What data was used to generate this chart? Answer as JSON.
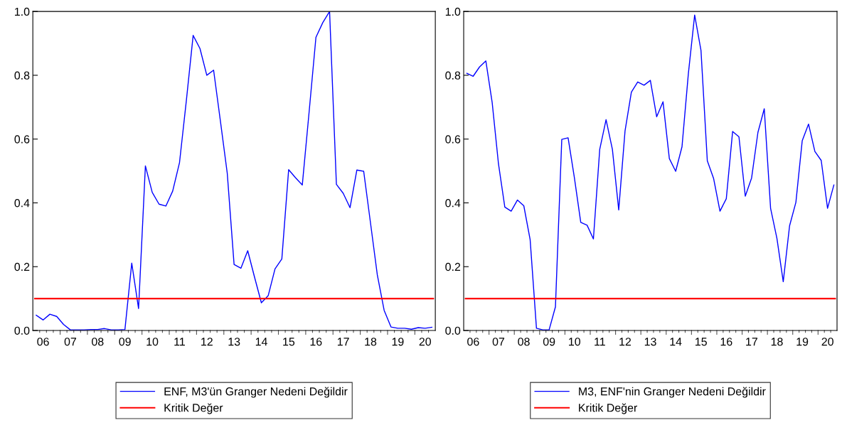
{
  "chart_data": [
    {
      "type": "line",
      "categories": [
        null,
        "06",
        null,
        null,
        null,
        "07",
        null,
        null,
        null,
        "08",
        null,
        null,
        null,
        "09",
        null,
        null,
        null,
        "10",
        null,
        null,
        null,
        "11",
        null,
        null,
        null,
        "12",
        null,
        null,
        null,
        "13",
        null,
        null,
        null,
        "14",
        null,
        null,
        null,
        "15",
        null,
        null,
        null,
        "16",
        null,
        null,
        null,
        "17",
        null,
        null,
        null,
        "18",
        null,
        null,
        null,
        "19",
        null,
        null,
        null,
        "20",
        null
      ],
      "series": [
        {
          "name": "ENF, M3'ün Granger Nedeni Değildir",
          "color": "#0000ff",
          "values": [
            0.048,
            0.033,
            0.051,
            0.044,
            0.019,
            0.002,
            0.002,
            0.002,
            0.003,
            0.003,
            0.006,
            0.002,
            0.002,
            0.003,
            0.211,
            0.069,
            0.516,
            0.433,
            0.396,
            0.39,
            0.437,
            0.526,
            0.72,
            0.925,
            0.884,
            0.8,
            0.816,
            0.656,
            0.493,
            0.207,
            0.195,
            0.25,
            0.167,
            0.087,
            0.109,
            0.193,
            0.224,
            0.504,
            0.479,
            0.456,
            0.685,
            0.919,
            0.965,
            1.0,
            0.458,
            0.43,
            0.385,
            0.503,
            0.499,
            0.337,
            0.174,
            0.063,
            0.011,
            0.007,
            0.007,
            0.004,
            0.009,
            0.007,
            0.01
          ]
        }
      ],
      "ref_lines": [
        {
          "axis": "y",
          "value": 0.1,
          "label": "Kritik Değer",
          "color": "#ff0000"
        }
      ],
      "ylim": [
        0,
        1
      ],
      "yticks": [
        {
          "value": 0,
          "label": "0.0"
        },
        {
          "value": 0.2,
          "label": "0.2"
        },
        {
          "value": 0.4,
          "label": "0.4"
        },
        {
          "value": 0.6,
          "label": "0.6"
        },
        {
          "value": 0.8,
          "label": "0.8"
        },
        {
          "value": 1,
          "label": "1.0"
        }
      ],
      "grid": false,
      "legend": "bottom",
      "marker": "none",
      "line_style": "solid"
    },
    {
      "type": "line",
      "categories": [
        null,
        "06",
        null,
        null,
        null,
        "07",
        null,
        null,
        null,
        "08",
        null,
        null,
        null,
        "09",
        null,
        null,
        null,
        "10",
        null,
        null,
        null,
        "11",
        null,
        null,
        null,
        "12",
        null,
        null,
        null,
        "13",
        null,
        null,
        null,
        "14",
        null,
        null,
        null,
        "15",
        null,
        null,
        null,
        "16",
        null,
        null,
        null,
        "17",
        null,
        null,
        null,
        "18",
        null,
        null,
        null,
        "19",
        null,
        null,
        null,
        "20",
        null
      ],
      "series": [
        {
          "name": "M3, ENF'nin Granger Nedeni Değildir",
          "color": "#0000ff",
          "values": [
            0.806,
            0.797,
            0.826,
            0.845,
            0.715,
            0.522,
            0.387,
            0.374,
            0.409,
            0.391,
            0.285,
            0.007,
            0.002,
            0.002,
            0.074,
            0.599,
            0.604,
            0.478,
            0.339,
            0.33,
            0.287,
            0.568,
            0.661,
            0.568,
            0.378,
            0.626,
            0.747,
            0.779,
            0.769,
            0.784,
            0.67,
            0.717,
            0.539,
            0.499,
            0.576,
            0.804,
            0.989,
            0.878,
            0.532,
            0.476,
            0.374,
            0.413,
            0.624,
            0.607,
            0.421,
            0.478,
            0.621,
            0.695,
            0.383,
            0.289,
            0.153,
            0.328,
            0.402,
            0.595,
            0.647,
            0.561,
            0.533,
            0.383,
            0.456
          ]
        }
      ],
      "ref_lines": [
        {
          "axis": "y",
          "value": 0.1,
          "label": "Kritik Değer",
          "color": "#ff0000"
        }
      ],
      "ylim": [
        0,
        1
      ],
      "yticks": [
        {
          "value": 0,
          "label": "0.0"
        },
        {
          "value": 0.2,
          "label": "0.2"
        },
        {
          "value": 0.4,
          "label": "0.4"
        },
        {
          "value": 0.6,
          "label": "0.6"
        },
        {
          "value": 0.8,
          "label": "0.8"
        },
        {
          "value": 1,
          "label": "1.0"
        }
      ],
      "grid": false,
      "legend": "bottom",
      "marker": "none",
      "line_style": "solid"
    }
  ]
}
